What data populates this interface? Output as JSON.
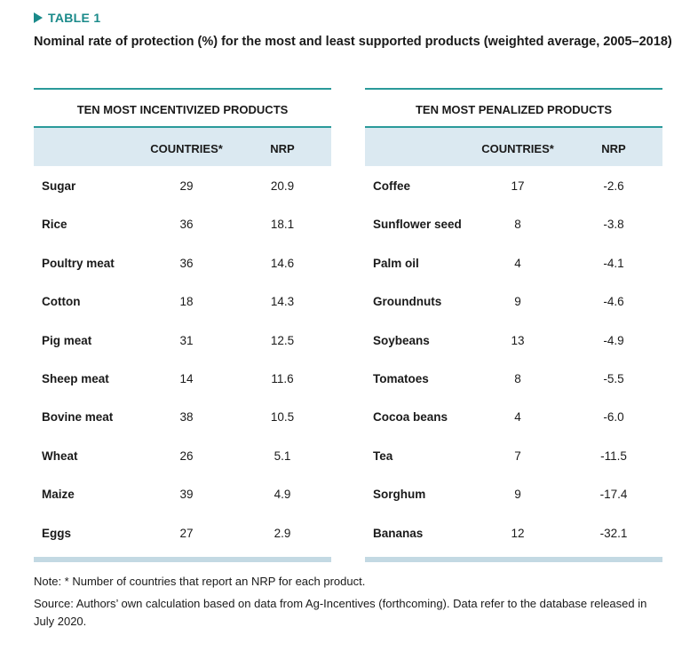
{
  "label": "TABLE 1",
  "title": "Nominal rate of protection (%) for the most and least supported products (weighted average, 2005–2018)",
  "tables": [
    {
      "heading": "TEN MOST INCENTIVIZED PRODUCTS",
      "columns": [
        "COUNTRIES*",
        "NRP"
      ],
      "rows": [
        [
          "Sugar",
          "29",
          "20.9"
        ],
        [
          "Rice",
          "36",
          "18.1"
        ],
        [
          "Poultry meat",
          "36",
          "14.6"
        ],
        [
          "Cotton",
          "18",
          "14.3"
        ],
        [
          "Pig meat",
          "31",
          "12.5"
        ],
        [
          "Sheep meat",
          "14",
          "11.6"
        ],
        [
          "Bovine meat",
          "38",
          "10.5"
        ],
        [
          "Wheat",
          "26",
          "5.1"
        ],
        [
          "Maize",
          "39",
          "4.9"
        ],
        [
          "Eggs",
          "27",
          "2.9"
        ]
      ]
    },
    {
      "heading": "TEN MOST PENALIZED PRODUCTS",
      "columns": [
        "COUNTRIES*",
        "NRP"
      ],
      "rows": [
        [
          "Coffee",
          "17",
          "-2.6"
        ],
        [
          "Sunflower seed",
          "8",
          "-3.8"
        ],
        [
          "Palm oil",
          "4",
          "-4.1"
        ],
        [
          "Groundnuts",
          "9",
          "-4.6"
        ],
        [
          "Soybeans",
          "13",
          "-4.9"
        ],
        [
          "Tomatoes",
          "8",
          "-5.5"
        ],
        [
          "Cocoa beans",
          "4",
          "-6.0"
        ],
        [
          "Tea",
          "7",
          "-11.5"
        ],
        [
          "Sorghum",
          "9",
          "-17.4"
        ],
        [
          "Bananas",
          "12",
          "-32.1"
        ]
      ]
    }
  ],
  "notes": [
    "Note: * Number of countries that report an NRP for each product.",
    "Source: Authors’ own calculation based on data from Ag-Incentives (forthcoming). Data refer to the database released in July 2020."
  ]
}
